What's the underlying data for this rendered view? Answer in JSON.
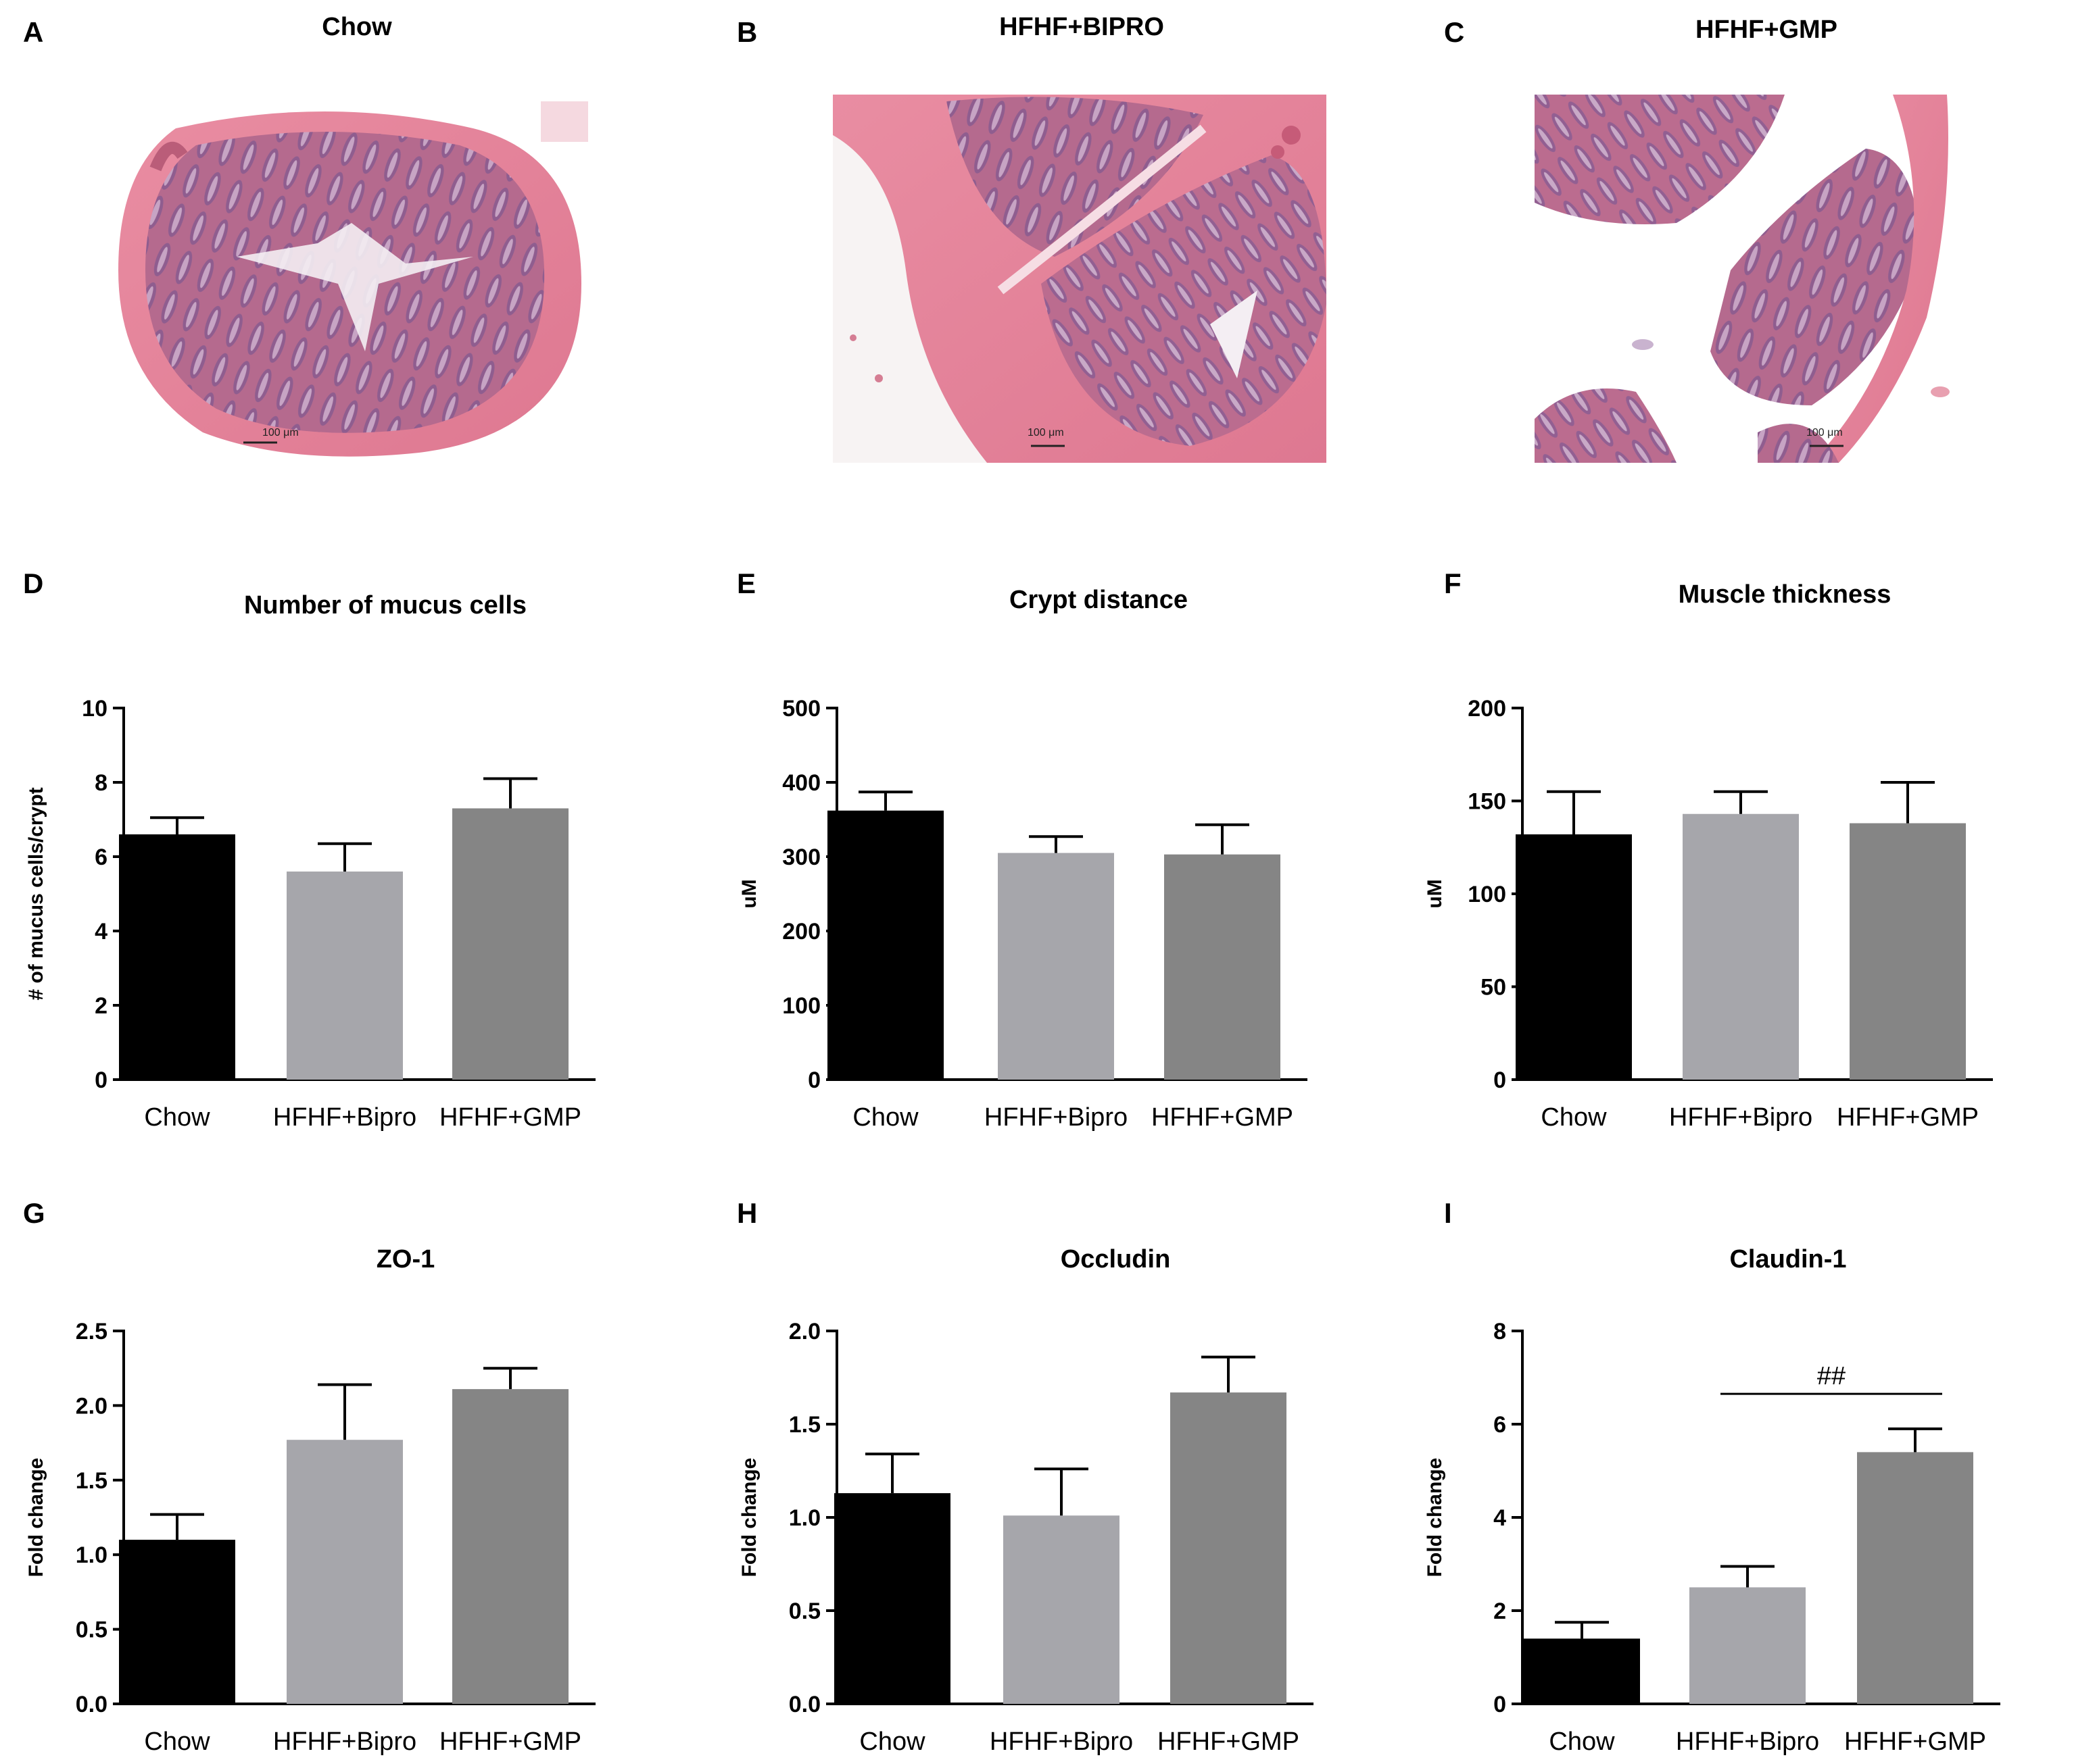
{
  "histology": [
    {
      "label": "A",
      "title": "Chow",
      "scale_bar": "100 μm"
    },
    {
      "label": "B",
      "title": "HFHF+BIPRO",
      "scale_bar": "100 μm"
    },
    {
      "label": "C",
      "title": "HFHF+GMP",
      "scale_bar": "100 μm"
    }
  ],
  "colors": {
    "Chow": "#000000",
    "HFHF+Bipro": "#a6a6ab",
    "HFHF+GMP": "#858585",
    "tissue_pink": "#e8899e",
    "tissue_purple": "#9a4f82",
    "background_white": "#ffffff"
  },
  "chart_data": [
    {
      "label": "D",
      "type": "bar",
      "title": "Number of mucus cells",
      "ylabel": "# of mucus cells/crypt",
      "categories": [
        "Chow",
        "HFHF+Bipro",
        "HFHF+GMP"
      ],
      "values": [
        6.6,
        5.6,
        7.3
      ],
      "errors": [
        0.45,
        0.75,
        0.8
      ],
      "ylim": [
        0,
        10
      ],
      "yticks": [
        "0",
        "2",
        "4",
        "6",
        "8",
        "10"
      ]
    },
    {
      "label": "E",
      "type": "bar",
      "title": "Crypt distance",
      "ylabel": "uM",
      "categories": [
        "Chow",
        "HFHF+Bipro",
        "HFHF+GMP"
      ],
      "values": [
        362,
        305,
        303
      ],
      "errors": [
        25,
        22,
        40
      ],
      "ylim": [
        0,
        500
      ],
      "yticks": [
        "0",
        "100",
        "200",
        "300",
        "400",
        "500"
      ]
    },
    {
      "label": "F",
      "type": "bar",
      "title": "Muscle thickness",
      "ylabel": "uM",
      "categories": [
        "Chow",
        "HFHF+Bipro",
        "HFHF+GMP"
      ],
      "values": [
        132,
        143,
        138
      ],
      "errors": [
        23,
        12,
        22
      ],
      "ylim": [
        0,
        200
      ],
      "yticks": [
        "0",
        "50",
        "100",
        "150",
        "200"
      ]
    },
    {
      "label": "G",
      "type": "bar",
      "title": "ZO-1",
      "ylabel": "Fold change",
      "categories": [
        "Chow",
        "HFHF+Bipro",
        "HFHF+GMP"
      ],
      "values": [
        1.1,
        1.77,
        2.11
      ],
      "errors": [
        0.17,
        0.37,
        0.14
      ],
      "ylim": [
        0,
        2.5
      ],
      "yticks": [
        "0.0",
        "0.5",
        "1.0",
        "1.5",
        "2.0",
        "2.5"
      ]
    },
    {
      "label": "H",
      "type": "bar",
      "title": "Occludin",
      "ylabel": "Fold change",
      "categories": [
        "Chow",
        "HFHF+Bipro",
        "HFHF+GMP"
      ],
      "values": [
        1.13,
        1.01,
        1.67
      ],
      "errors": [
        0.21,
        0.25,
        0.19
      ],
      "ylim": [
        0,
        2.0
      ],
      "yticks": [
        "0.0",
        "0.5",
        "1.0",
        "1.5",
        "2.0"
      ]
    },
    {
      "label": "I",
      "type": "bar",
      "title": "Claudin-1",
      "ylabel": "Fold change",
      "categories": [
        "Chow",
        "HFHF+Bipro",
        "HFHF+GMP"
      ],
      "values": [
        1.4,
        2.5,
        5.4
      ],
      "errors": [
        0.35,
        0.45,
        0.5
      ],
      "ylim": [
        0,
        8
      ],
      "yticks": [
        "0",
        "2",
        "4",
        "6",
        "8"
      ],
      "significance": {
        "from": 1,
        "to": 2,
        "text": "##",
        "level": 6.65
      }
    }
  ]
}
